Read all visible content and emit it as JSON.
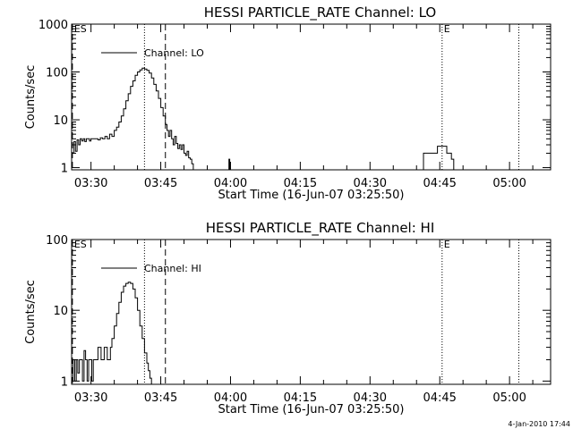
{
  "chart_data": [
    {
      "type": "line",
      "title": "HESSI PARTICLE_RATE Channel: LO",
      "xlabel": "Start Time (16-Jun-07 03:25:50)",
      "ylabel": "Counts/sec",
      "yscale": "log",
      "ylim": [
        0.9,
        1000
      ],
      "xlim": [
        "03:25:50",
        "05:08:50"
      ],
      "y_ticks": [
        "1",
        "10",
        "100",
        "1000"
      ],
      "x_ticks": [
        "03:30",
        "03:45",
        "04:00",
        "04:15",
        "04:30",
        "04:45",
        "05:00"
      ],
      "legend": {
        "position": "top-left",
        "entries": [
          "Channel: LO"
        ]
      },
      "markers": [
        {
          "label": "ES",
          "time": "03:26:00",
          "style": "dashed"
        },
        {
          "label": "",
          "time": "03:41:30",
          "style": "dotted"
        },
        {
          "label": "",
          "time": "03:46:00",
          "style": "dashed"
        },
        {
          "label": "E",
          "time": "04:45:30",
          "style": "dotted"
        },
        {
          "label": "",
          "time": "05:02:00",
          "style": "dotted"
        }
      ],
      "series": [
        {
          "name": "Channel: LO",
          "segments": [
            {
              "x": [
                "03:25:50",
                "03:26:20",
                "03:26:40",
                "03:27:00",
                "03:27:20",
                "03:27:40",
                "03:28:00",
                "03:28:20",
                "03:28:40",
                "03:29:00",
                "03:29:20",
                "03:29:40",
                "03:30:00",
                "03:30:30",
                "03:31:00",
                "03:31:30",
                "03:32:00",
                "03:32:30",
                "03:33:00",
                "03:33:30",
                "03:34:00",
                "03:34:30",
                "03:35:00",
                "03:35:30",
                "03:36:00",
                "03:36:30",
                "03:37:00",
                "03:37:30",
                "03:38:00",
                "03:38:30",
                "03:39:00",
                "03:39:30",
                "03:40:00",
                "03:40:30",
                "03:41:00",
                "03:41:30",
                "03:42:00",
                "03:42:30",
                "03:43:00",
                "03:43:30",
                "03:44:00",
                "03:44:30",
                "03:45:00",
                "03:45:30",
                "03:46:00",
                "03:46:20",
                "03:46:40",
                "03:47:00",
                "03:47:20",
                "03:47:40",
                "03:48:00",
                "03:48:20",
                "03:48:40",
                "03:49:00",
                "03:49:20",
                "03:49:40",
                "03:50:00",
                "03:50:20",
                "03:50:40",
                "03:51:00",
                "03:51:20",
                "03:51:40",
                "03:52:00"
              ],
              "y": [
                2.0,
                3.5,
                2.2,
                3.8,
                3.0,
                4.0,
                3.6,
                4.0,
                3.5,
                4.0,
                4.0,
                3.6,
                4.0,
                4.0,
                4.0,
                3.8,
                4.2,
                4.0,
                4.5,
                4.0,
                5.0,
                4.5,
                6.0,
                7.0,
                9.0,
                12.0,
                17.0,
                25.0,
                35.0,
                50.0,
                65.0,
                85.0,
                100.0,
                110.0,
                120.0,
                115.0,
                108.0,
                95.0,
                75.0,
                55.0,
                40.0,
                28.0,
                18.0,
                12.0,
                8.0,
                6.0,
                4.5,
                6.0,
                4.0,
                3.0,
                4.5,
                3.2,
                2.5,
                3.0,
                2.4,
                3.0,
                2.0,
                1.8,
                2.2,
                1.6,
                1.5,
                1.2,
                0.9
              ]
            },
            {
              "x": [
                "03:59:30",
                "03:59:40",
                "03:59:50"
              ],
              "y": [
                0.9,
                1.5,
                0.9
              ]
            },
            {
              "x": [
                "04:41:00",
                "04:41:30",
                "04:42:00",
                "04:43:00",
                "04:44:00",
                "04:44:30",
                "04:45:00",
                "04:46:00",
                "04:46:30",
                "04:47:00",
                "04:47:30",
                "04:48:00"
              ],
              "y": [
                0.9,
                2.0,
                2.0,
                2.0,
                2.0,
                2.8,
                2.8,
                2.8,
                2.0,
                2.0,
                1.5,
                0.9
              ]
            }
          ]
        }
      ]
    },
    {
      "type": "line",
      "title": "HESSI PARTICLE_RATE Channel: HI",
      "xlabel": "Start Time (16-Jun-07 03:25:50)",
      "ylabel": "Counts/sec",
      "yscale": "log",
      "ylim": [
        0.9,
        100
      ],
      "xlim": [
        "03:25:50",
        "05:08:50"
      ],
      "y_ticks": [
        "1",
        "10",
        "100"
      ],
      "x_ticks": [
        "03:30",
        "03:45",
        "04:00",
        "04:15",
        "04:30",
        "04:45",
        "05:00"
      ],
      "legend": {
        "position": "top-left",
        "entries": [
          "Channel: HI"
        ]
      },
      "markers": [
        {
          "label": "ES",
          "time": "03:26:00",
          "style": "dashed"
        },
        {
          "label": "",
          "time": "03:41:30",
          "style": "dotted"
        },
        {
          "label": "",
          "time": "03:46:00",
          "style": "dashed"
        },
        {
          "label": "E",
          "time": "04:45:30",
          "style": "dotted"
        },
        {
          "label": "",
          "time": "05:02:00",
          "style": "dotted"
        }
      ],
      "series": [
        {
          "name": "Channel: HI",
          "segments": [
            {
              "x": [
                "03:25:50",
                "03:26:10",
                "03:26:30",
                "03:26:50",
                "03:27:10",
                "03:27:30",
                "03:27:50",
                "03:28:10",
                "03:28:30",
                "03:28:50",
                "03:29:10",
                "03:29:30",
                "03:29:50",
                "03:30:10",
                "03:30:30",
                "03:30:50",
                "03:31:10",
                "03:31:30",
                "03:31:50",
                "03:32:10",
                "03:32:30",
                "03:32:50",
                "03:33:10",
                "03:33:30",
                "03:33:50",
                "03:34:10",
                "03:34:30",
                "03:35:00",
                "03:35:30",
                "03:36:00",
                "03:36:30",
                "03:37:00",
                "03:37:30",
                "03:38:00",
                "03:38:30",
                "03:39:00",
                "03:39:30",
                "03:40:00",
                "03:40:30",
                "03:41:00",
                "03:41:30",
                "03:42:00",
                "03:42:20",
                "03:42:40",
                "03:43:00"
              ],
              "y": [
                1.0,
                2.0,
                1.0,
                2.0,
                1.3,
                2.0,
                2.0,
                1.0,
                2.7,
                2.0,
                1.0,
                2.0,
                2.0,
                1.0,
                2.0,
                2.0,
                2.0,
                3.0,
                3.0,
                2.0,
                2.0,
                3.0,
                3.0,
                2.0,
                2.0,
                3.0,
                4.0,
                6.0,
                9.0,
                13.0,
                18.0,
                22.0,
                24.0,
                25.0,
                24.0,
                20.0,
                15.0,
                10.0,
                6.0,
                4.0,
                2.5,
                1.8,
                1.4,
                1.1,
                0.9
              ]
            }
          ]
        }
      ]
    }
  ],
  "footer": {
    "timestamp": "4-Jan-2010 17:44"
  }
}
